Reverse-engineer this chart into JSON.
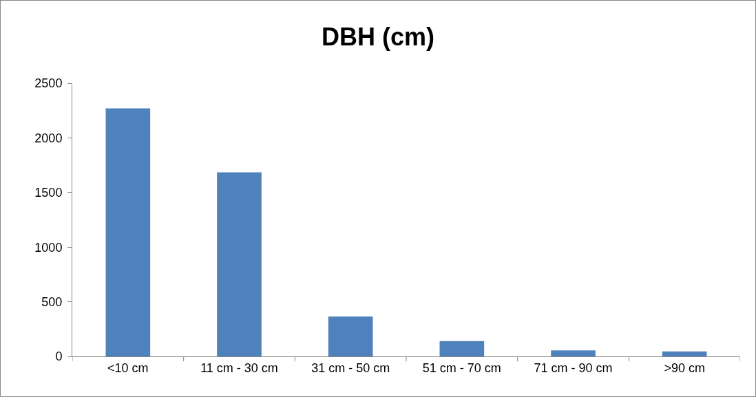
{
  "chart_data": {
    "type": "bar",
    "title": "DBH (cm)",
    "categories": [
      "<10 cm",
      "11 cm - 30 cm",
      "31 cm - 50 cm",
      "51 cm - 70 cm",
      "71 cm - 90 cm",
      ">90 cm"
    ],
    "values": [
      2270,
      1685,
      365,
      140,
      55,
      45
    ],
    "color": "#4f81bd",
    "ylim": [
      0,
      2500
    ],
    "yticks": [
      0,
      500,
      1000,
      1500,
      2000,
      2500
    ],
    "grid": false,
    "legend": false
  }
}
